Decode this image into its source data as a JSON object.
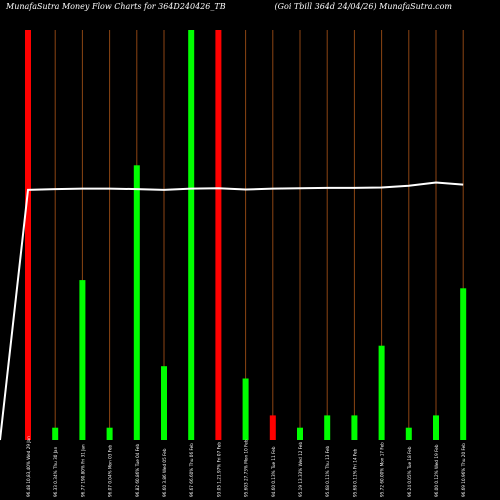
{
  "title_left": "MunafaSutra  Money Flow  Charts for 364D240426_TB",
  "title_right": "(Goi   Tbill 364d 24/04/26) MunafaSutra.com",
  "colors": {
    "background": "#000000",
    "up": "#00ff00",
    "down": "#ff0000",
    "line": "#ffffff",
    "grid": "#8b4513"
  },
  "chart_data": {
    "type": "bar",
    "categories": [
      "96.48 10,83,40% Wed 29 Jan",
      "96.33 0.34% Thu 30 Jan",
      "96.77 190.80% Fri 31 Jan",
      "96.07 0.04% Mon 03 Feb",
      "96.82 60.86% Tue 04 Feb",
      "96.60 3.86 Wed 05 Feb",
      "96.67 66.60% Thu 06 Feb",
      "93.05 1,21.97% Fri 07 Feb",
      "95.603 27.73% Mon 10 Feb",
      "94.60 0.13% Tue 11 Feb",
      "95.19 13.33% Wed 12 Feb",
      "95.68 0.11% Thu 13 Feb",
      "95.68 0.11% Fri 14 Feb",
      "95.72 60.00% Mon 17 Feb",
      "96.24 0.05% Tue 18 Feb",
      "96.00 0.12% Wed 19 Feb",
      "96.69 10.96% Thu 20 Feb"
    ],
    "values": [
      100,
      3,
      39,
      3,
      67,
      18,
      100,
      100,
      15,
      6,
      3,
      6,
      6,
      23,
      3,
      6,
      37
    ],
    "colors": [
      "down",
      "up",
      "up",
      "up",
      "up",
      "up",
      "up",
      "down",
      "up",
      "down",
      "up",
      "up",
      "up",
      "up",
      "up",
      "up",
      "up"
    ],
    "line": [
      61,
      61.2,
      61.3,
      61.3,
      61.2,
      61,
      61.3,
      61.4,
      61.1,
      61.3,
      61.4,
      61.5,
      61.5,
      61.6,
      62,
      62.8,
      62.3
    ],
    "ylim": [
      0,
      100
    ],
    "grid": true
  }
}
